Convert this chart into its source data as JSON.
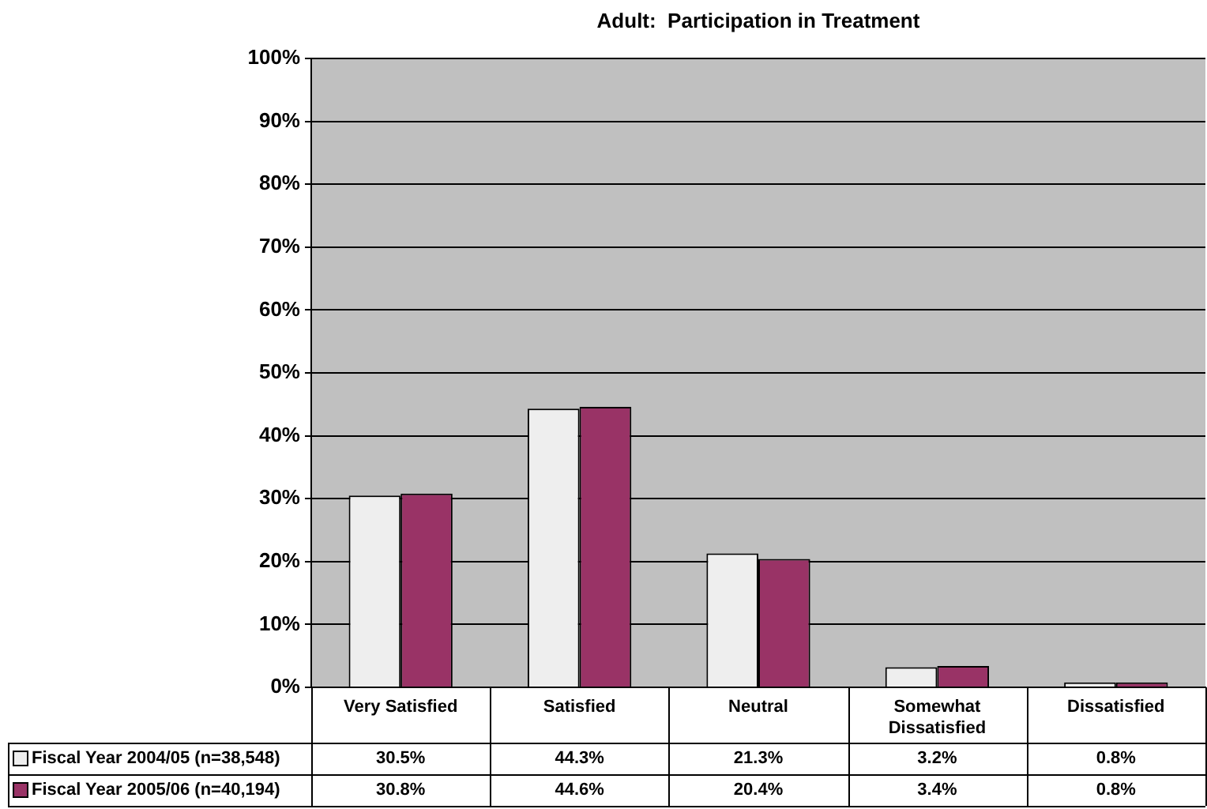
{
  "chart_data": {
    "type": "bar",
    "title": "Adult:  Participation in Treatment",
    "categories": [
      "Very Satisfied",
      "Satisfied",
      "Neutral",
      "Somewhat Dissatisfied",
      "Dissatisfied"
    ],
    "series": [
      {
        "name": "Fiscal Year 2004/05 (n=38,548)",
        "color": "#eeeeee",
        "values": [
          30.5,
          44.3,
          21.3,
          3.2,
          0.8
        ],
        "value_labels": [
          "30.5%",
          "44.3%",
          "21.3%",
          "3.2%",
          "0.8%"
        ]
      },
      {
        "name": "Fiscal Year 2005/06 (n=40,194)",
        "color": "#993366",
        "values": [
          30.8,
          44.6,
          20.4,
          3.4,
          0.8
        ],
        "value_labels": [
          "30.8%",
          "44.6%",
          "20.4%",
          "3.4%",
          "0.8%"
        ]
      }
    ],
    "ylim": [
      0,
      100
    ],
    "yticks": [
      {
        "value": 0,
        "label": "0%"
      },
      {
        "value": 10,
        "label": "10%"
      },
      {
        "value": 20,
        "label": "20%"
      },
      {
        "value": 30,
        "label": "30%"
      },
      {
        "value": 40,
        "label": "40%"
      },
      {
        "value": 50,
        "label": "50%"
      },
      {
        "value": 60,
        "label": "60%"
      },
      {
        "value": 70,
        "label": "70%"
      },
      {
        "value": 80,
        "label": "80%"
      },
      {
        "value": 90,
        "label": "90%"
      },
      {
        "value": 100,
        "label": "100%"
      }
    ],
    "grid": "y",
    "legend": "bottom left"
  }
}
